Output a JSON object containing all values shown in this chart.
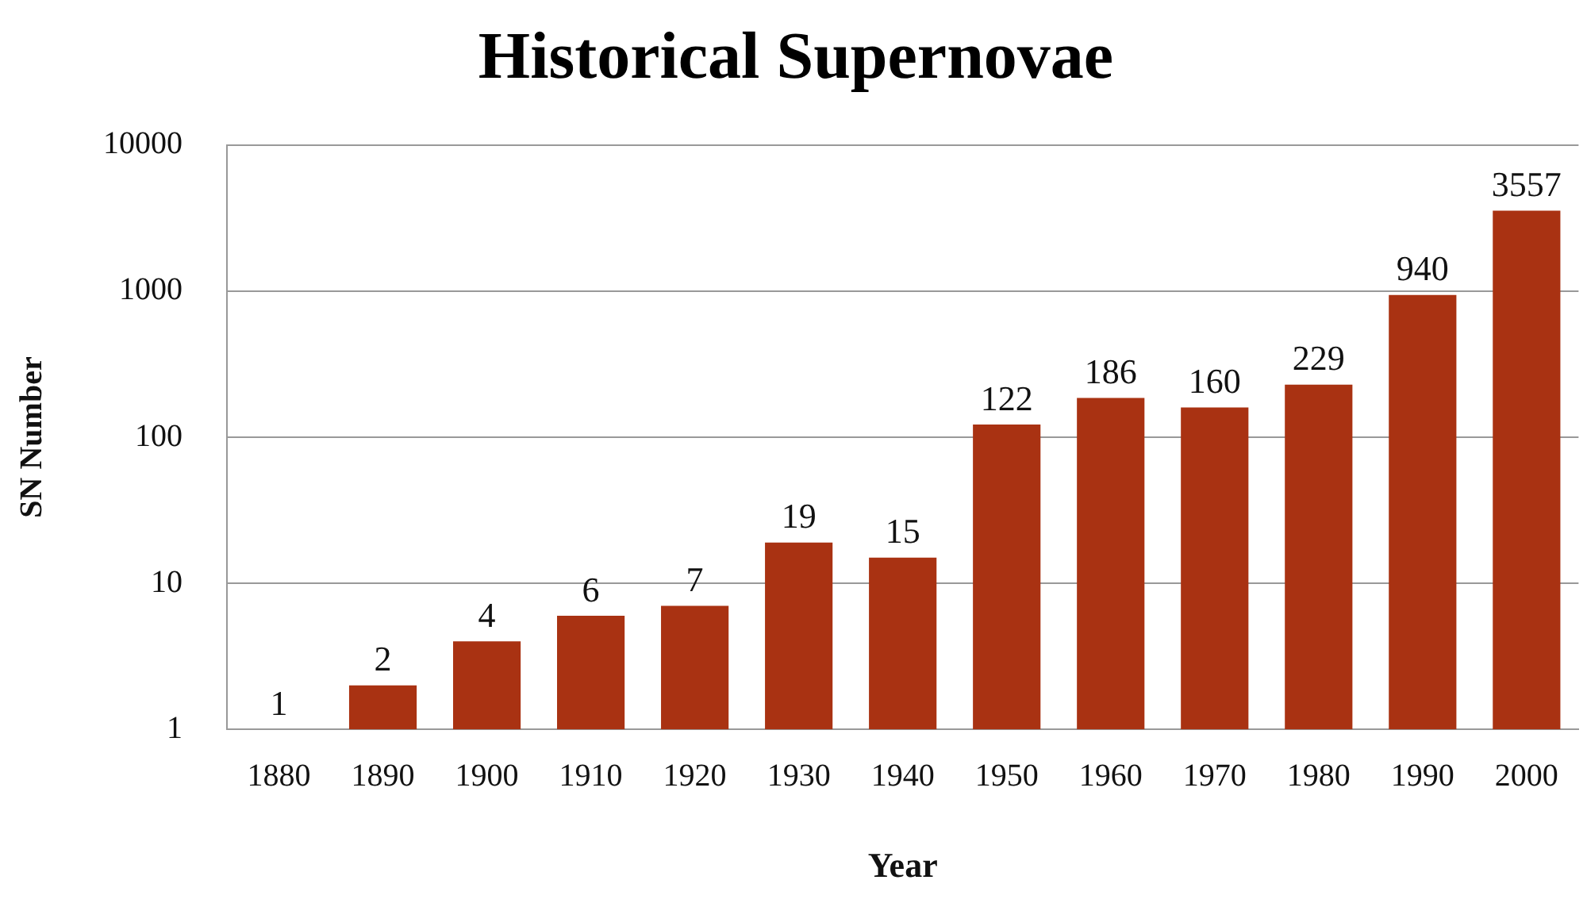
{
  "chart_data": {
    "type": "bar",
    "title": "Historical Supernovae",
    "xlabel": "Year",
    "ylabel": "SN Number",
    "categories": [
      "1880",
      "1890",
      "1900",
      "1910",
      "1920",
      "1930",
      "1940",
      "1950",
      "1960",
      "1970",
      "1980",
      "1990",
      "2000"
    ],
    "values": [
      1,
      2,
      4,
      6,
      7,
      19,
      15,
      122,
      186,
      160,
      229,
      940,
      3557
    ],
    "color": "#a93212",
    "log": "y",
    "ylim": [
      1,
      10000
    ],
    "yticks": [
      1,
      10,
      100,
      1000,
      10000
    ],
    "grid": "y",
    "data_labels": true,
    "legend": false
  }
}
